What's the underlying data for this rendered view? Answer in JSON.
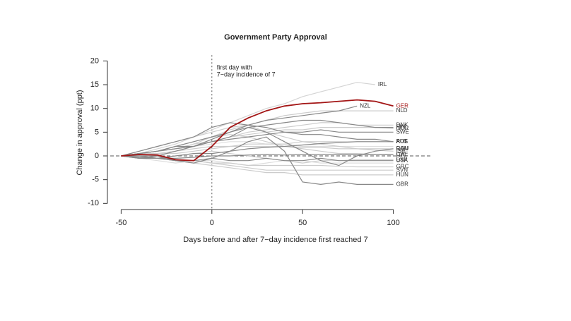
{
  "chart_data": {
    "type": "line",
    "title": "Government Party Approval",
    "x_label": "Days before and after 7−day incidence first reached 7",
    "y_label": "Change in approval (ppt)",
    "annotation": [
      "first day with",
      "7−day incidence of 7"
    ],
    "reference_lines": {
      "x": 0,
      "y": 0
    },
    "xlim": [
      -56,
      106
    ],
    "ylim": [
      -11.2,
      21.2
    ],
    "xticks": [
      -50,
      0,
      50,
      100
    ],
    "yticks": [
      -10,
      -5,
      0,
      5,
      10,
      15,
      20
    ],
    "x": [
      -50,
      -40,
      -30,
      -20,
      -10,
      0,
      10,
      20,
      30,
      40,
      50,
      60,
      70,
      80,
      90,
      100
    ],
    "series": [
      {
        "color": "#dddddd",
        "values": [
          0,
          -0.5,
          -1,
          -1.5,
          -1,
          -1,
          -1.5,
          -2,
          -1.5,
          -1,
          -1,
          -1.5,
          -1.5,
          -1.5,
          -1.5,
          -1.5
        ]
      },
      {
        "color": "#dddddd",
        "values": [
          0,
          0.5,
          1,
          1.5,
          2,
          2.5,
          3,
          3,
          2.5,
          2.5,
          2,
          2,
          2,
          2,
          2,
          2
        ]
      },
      {
        "name": "IRL",
        "color": "#d4d4d4",
        "values": [
          0,
          0.5,
          1.5,
          2.5,
          4,
          5.5,
          7,
          8.5,
          10,
          11,
          12.5,
          13.5,
          14.5,
          15.5,
          15,
          null
        ]
      },
      {
        "name": "NLD",
        "color": "#cccccc",
        "values": [
          0,
          0.5,
          1,
          1.5,
          2.5,
          4,
          5.5,
          6.5,
          7.5,
          8.5,
          9,
          9.5,
          9.5,
          9.5,
          9.5,
          9.5
        ]
      },
      {
        "name": "DNK",
        "color": "#cccccc",
        "values": [
          0,
          0,
          0.5,
          1,
          2,
          3,
          4,
          5,
          5.5,
          6,
          6.5,
          7,
          7,
          6.5,
          6.5,
          6.5
        ]
      },
      {
        "name": "NOR",
        "color": "#cccccc",
        "values": [
          0,
          0.5,
          1,
          1.5,
          2.5,
          3,
          4,
          4.5,
          5,
          5.5,
          5.5,
          6,
          6,
          6,
          6,
          5.8
        ]
      },
      {
        "name": "AUT",
        "color": "#cccccc",
        "values": [
          0,
          0,
          0.5,
          0.5,
          1,
          1.5,
          2,
          2.5,
          2.5,
          2.5,
          3,
          3,
          3,
          3,
          3,
          3
        ]
      },
      {
        "name": "ISR",
        "color": "#cccccc",
        "values": [
          0,
          1,
          2,
          3,
          4,
          5,
          6,
          6.5,
          5,
          4,
          3,
          2.5,
          2,
          1.5,
          1.2,
          1
        ]
      },
      {
        "name": "CAN",
        "color": "#cccccc",
        "values": [
          0,
          0.5,
          0.5,
          1,
          1.5,
          2,
          2,
          2,
          2,
          2,
          1.8,
          1.8,
          1.5,
          1.5,
          1.5,
          1.5
        ]
      },
      {
        "name": "ITA",
        "color": "#cccccc",
        "values": [
          0,
          0.5,
          1,
          2,
          3,
          4,
          4.5,
          4,
          3,
          2,
          1.5,
          1,
          0.5,
          0.5,
          0.3,
          0.2
        ]
      },
      {
        "name": "ESP",
        "color": "#cccccc",
        "values": [
          0,
          0,
          -0.5,
          0,
          0.5,
          1,
          0.5,
          0,
          -0.5,
          -1,
          -1.5,
          -1,
          -1,
          -0.8,
          -0.8,
          -0.8
        ]
      },
      {
        "name": "GRC",
        "color": "#cccccc",
        "values": [
          0,
          0,
          -0.5,
          -1,
          -1,
          -1.5,
          -1.5,
          -2,
          -2,
          -2,
          -2,
          -2,
          -2.2,
          -2.3,
          -2.3,
          -2.3
        ]
      },
      {
        "name": "SVN",
        "color": "#cccccc",
        "values": [
          0,
          0,
          -0.5,
          -1,
          -1,
          -1.5,
          -2,
          -2.5,
          -3,
          -3,
          -3,
          -3,
          -3,
          -3,
          -3,
          -3
        ]
      },
      {
        "name": "HUN",
        "color": "#cccccc",
        "values": [
          0,
          0,
          -0.5,
          -1,
          -1.5,
          -2,
          -2.5,
          -3,
          -3.5,
          -3.5,
          -4,
          -4,
          -4,
          -4,
          -4,
          -4
        ]
      },
      {
        "name": "NZL",
        "color": "#888888",
        "values": [
          0,
          0.5,
          1,
          2,
          3,
          4,
          5,
          6.5,
          7.5,
          8,
          8.5,
          9,
          9.5,
          10.5,
          null,
          null
        ]
      },
      {
        "name": "FIN",
        "color": "#888888",
        "values": [
          0,
          -0.5,
          0,
          1,
          2,
          3.5,
          5,
          6,
          6.5,
          7,
          7.5,
          7.5,
          7,
          6.5,
          6,
          6
        ]
      },
      {
        "name": "SWE",
        "color": "#888888",
        "values": [
          0,
          0.5,
          1,
          1.5,
          2,
          3,
          3.5,
          4,
          4.5,
          5,
          5,
          5.5,
          5,
          5,
          5,
          5
        ]
      },
      {
        "name": "AUS",
        "color": "#888888",
        "values": [
          0,
          1,
          2,
          3,
          4,
          6,
          7,
          6.5,
          6,
          5,
          4.5,
          4.5,
          4,
          3.5,
          3.5,
          3
        ]
      },
      {
        "name": "POL",
        "color": "#888888",
        "values": [
          0,
          0,
          -0.5,
          0,
          0.5,
          0.5,
          1,
          1.5,
          1.8,
          2,
          2.3,
          2.6,
          2.8,
          3,
          3,
          3
        ]
      },
      {
        "name": "ROU",
        "color": "#888888",
        "values": [
          0,
          0.5,
          1,
          2,
          2,
          3,
          4,
          6,
          5,
          3,
          1,
          -1,
          -2,
          0,
          1,
          1.5
        ]
      },
      {
        "name": "CHE",
        "color": "#888888",
        "values": [
          0,
          -0.3,
          -0.5,
          -0.5,
          -0.3,
          0,
          0,
          0.2,
          0.3,
          0.2,
          0.3,
          0.3,
          0.3,
          0.3,
          0.3,
          0.3
        ]
      },
      {
        "name": "USA",
        "color": "#888888",
        "values": [
          0,
          -0.5,
          -0.5,
          -1,
          -1,
          -0.5,
          -1,
          -1,
          -0.5,
          -1,
          -1,
          -0.5,
          -1,
          -1,
          -1,
          -1
        ]
      },
      {
        "name": "GBR",
        "color": "#888888",
        "values": [
          0,
          0,
          0,
          -1,
          -1.5,
          -0.5,
          1,
          3,
          4,
          1,
          -5.5,
          -6,
          -5.5,
          -6,
          -6,
          -6
        ]
      },
      {
        "name": "GER",
        "color": "#a31515",
        "values": [
          0,
          0.3,
          0.2,
          -0.8,
          -1,
          2,
          6,
          8,
          9.5,
          10.5,
          11,
          11.2,
          11.5,
          11.8,
          11.5,
          10.5
        ]
      }
    ]
  }
}
